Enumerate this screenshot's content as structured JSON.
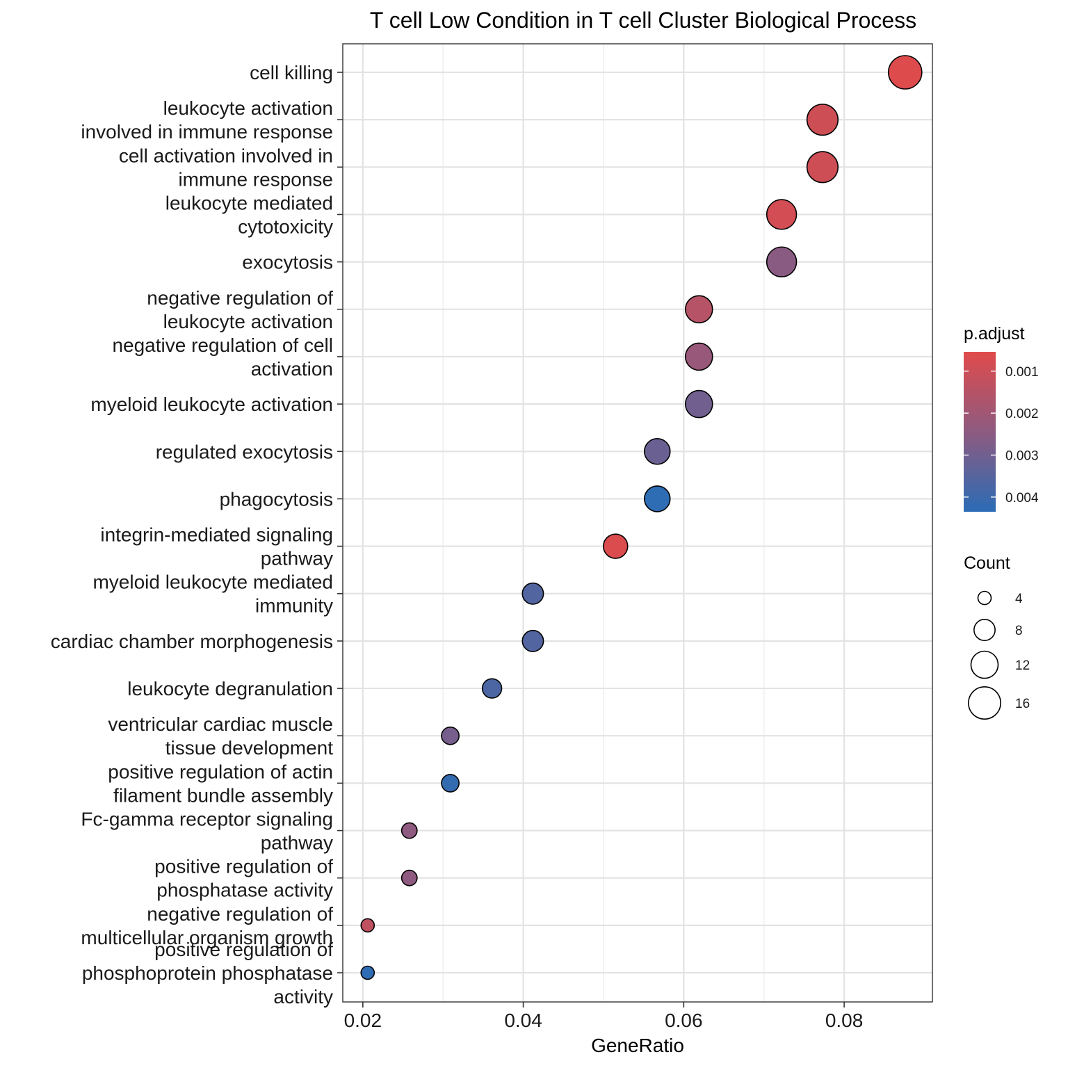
{
  "chart_data": {
    "type": "scatter",
    "title": "T cell Low Condition in T cell Cluster Biological Process",
    "xlabel": "GeneRatio",
    "ylabel": "",
    "xlim": [
      0.0175,
      0.091
    ],
    "x_ticks": [
      "0.02",
      "0.04",
      "0.06",
      "0.08"
    ],
    "x_tick_values": [
      0.02,
      0.04,
      0.06,
      0.08
    ],
    "grid": true,
    "color_scale": {
      "title": "p.adjust",
      "low_color": "#e04b4b",
      "high_color": "#2b6cb5",
      "range": [
        0.00054,
        0.00435
      ],
      "ticks": [
        "0.001",
        "0.002",
        "0.003",
        "0.004"
      ],
      "tick_values": [
        0.001,
        0.002,
        0.003,
        0.004
      ]
    },
    "size_scale": {
      "title": "Count",
      "labels": [
        "4",
        "8",
        "12",
        "16"
      ],
      "values": [
        4,
        8,
        12,
        16
      ],
      "count_range": [
        4,
        17
      ]
    },
    "points": [
      {
        "label": "cell killing",
        "gene_ratio": 0.0876,
        "count": 17,
        "p_adjust": 0.0006
      },
      {
        "label": "leukocyte activation involved in immune response",
        "gene_ratio": 0.0773,
        "count": 15,
        "p_adjust": 0.00095
      },
      {
        "label": "cell activation involved in immune response",
        "gene_ratio": 0.0773,
        "count": 15,
        "p_adjust": 0.00095
      },
      {
        "label": "leukocyte mediated cytotoxicity",
        "gene_ratio": 0.0722,
        "count": 14,
        "p_adjust": 0.00085
      },
      {
        "label": "exocytosis",
        "gene_ratio": 0.0722,
        "count": 14,
        "p_adjust": 0.0025
      },
      {
        "label": "negative regulation of leukocyte activation",
        "gene_ratio": 0.0619,
        "count": 12,
        "p_adjust": 0.0015
      },
      {
        "label": "negative regulation of cell activation",
        "gene_ratio": 0.0619,
        "count": 12,
        "p_adjust": 0.0022
      },
      {
        "label": "myeloid leukocyte activation",
        "gene_ratio": 0.0619,
        "count": 12,
        "p_adjust": 0.003
      },
      {
        "label": "regulated exocytosis",
        "gene_ratio": 0.0567,
        "count": 11,
        "p_adjust": 0.0031
      },
      {
        "label": "phagocytosis",
        "gene_ratio": 0.0567,
        "count": 11,
        "p_adjust": 0.0043
      },
      {
        "label": "integrin-mediated signaling pathway",
        "gene_ratio": 0.0515,
        "count": 10,
        "p_adjust": 0.00065
      },
      {
        "label": "myeloid leukocyte mediated immunity",
        "gene_ratio": 0.0412,
        "count": 8,
        "p_adjust": 0.0036
      },
      {
        "label": "cardiac chamber morphogenesis",
        "gene_ratio": 0.0412,
        "count": 8,
        "p_adjust": 0.0036
      },
      {
        "label": "leukocyte degranulation",
        "gene_ratio": 0.0361,
        "count": 7,
        "p_adjust": 0.0037
      },
      {
        "label": "ventricular cardiac muscle tissue development",
        "gene_ratio": 0.0309,
        "count": 6,
        "p_adjust": 0.0029
      },
      {
        "label": "positive regulation of actin filament bundle assembly",
        "gene_ratio": 0.0309,
        "count": 6,
        "p_adjust": 0.0042
      },
      {
        "label": "Fc-gamma receptor signaling pathway",
        "gene_ratio": 0.0258,
        "count": 5,
        "p_adjust": 0.0024
      },
      {
        "label": "positive regulation of phosphatase activity",
        "gene_ratio": 0.0258,
        "count": 5,
        "p_adjust": 0.0024
      },
      {
        "label": "negative regulation of multicellular organism growth",
        "gene_ratio": 0.0206,
        "count": 4,
        "p_adjust": 0.0013
      },
      {
        "label": "positive regulation of phosphoprotein phosphatase activity",
        "gene_ratio": 0.0206,
        "count": 4,
        "p_adjust": 0.0043
      }
    ],
    "y_labels": [
      [
        "cell killing"
      ],
      [
        "leukocyte activation",
        "involved in immune response"
      ],
      [
        "cell activation involved in",
        "immune response"
      ],
      [
        "leukocyte mediated",
        "cytotoxicity"
      ],
      [
        "exocytosis"
      ],
      [
        "negative regulation of",
        "leukocyte activation"
      ],
      [
        "negative regulation of cell",
        "activation"
      ],
      [
        "myeloid leukocyte activation"
      ],
      [
        "regulated exocytosis"
      ],
      [
        "phagocytosis"
      ],
      [
        "integrin-mediated signaling",
        "pathway"
      ],
      [
        "myeloid leukocyte mediated",
        "immunity"
      ],
      [
        "cardiac chamber morphogenesis"
      ],
      [
        "leukocyte degranulation"
      ],
      [
        "ventricular cardiac muscle",
        "tissue development"
      ],
      [
        "positive regulation of actin",
        "filament bundle assembly"
      ],
      [
        "Fc-gamma receptor signaling",
        "pathway"
      ],
      [
        "positive regulation of",
        "phosphatase activity"
      ],
      [
        "negative regulation of",
        "multicellular organism growth"
      ],
      [
        "positive regulation of",
        "phosphoprotein phosphatase",
        "activity"
      ]
    ]
  }
}
